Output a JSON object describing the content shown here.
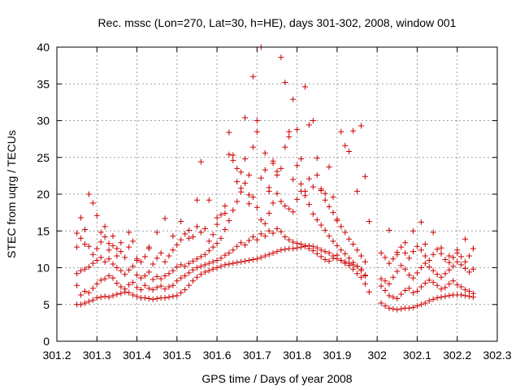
{
  "chart_data": {
    "type": "scatter",
    "title": "Rec. mssc (Lon=270, Lat=30, h=HE), days 301-302, 2008, window 001",
    "xlabel": "GPS time / Days of year 2008",
    "ylabel": "STEC from uqrg / TECUs",
    "xlim": [
      301.2,
      302.3
    ],
    "ylim": [
      0,
      40
    ],
    "xticks": [
      301.2,
      301.3,
      301.4,
      301.5,
      301.6,
      301.7,
      301.8,
      301.9,
      302,
      302.1,
      302.2,
      302.3
    ],
    "xtick_labels": [
      "301.2",
      "301.3",
      "301.4",
      "301.5",
      "301.6",
      "301.7",
      "301.8",
      "301.9",
      "302",
      "302.1",
      "302.2",
      "302.3"
    ],
    "yticks": [
      0,
      5,
      10,
      15,
      20,
      25,
      30,
      35,
      40
    ],
    "ytick_labels": [
      "0",
      "5",
      "10",
      "15",
      "20",
      "25",
      "30",
      "35",
      "40"
    ],
    "grid": true,
    "legend": "none",
    "marker": "plus",
    "color": "#cc0000",
    "series": [
      {
        "x": [
          301.25,
          301.26,
          301.27,
          301.28,
          301.29,
          301.3,
          301.31,
          301.32,
          301.33,
          301.34,
          301.35,
          301.36,
          301.37,
          301.38,
          301.39,
          301.4,
          301.41,
          301.42,
          301.43,
          301.44,
          301.45,
          301.46,
          301.47,
          301.48,
          301.49,
          301.5,
          301.51,
          301.52,
          301.53,
          301.54,
          301.55,
          301.56,
          301.57,
          301.58,
          301.59,
          301.6,
          301.61,
          301.62,
          301.63,
          301.64,
          301.65,
          301.66,
          301.67,
          301.68,
          301.69,
          301.7,
          301.71,
          301.72,
          301.73,
          301.74,
          301.75,
          301.76,
          301.77,
          301.78,
          301.79,
          301.8,
          301.81,
          301.82,
          301.83,
          301.84,
          301.85,
          301.86,
          301.87,
          301.88,
          301.89,
          301.9,
          301.91,
          301.92,
          301.93,
          301.94,
          301.95,
          301.96,
          301.97,
          301.98,
          302.01,
          302.02,
          302.03,
          302.04,
          302.05,
          302.06,
          302.07,
          302.08,
          302.09,
          302.1,
          302.11,
          302.12,
          302.13,
          302.14,
          302.15,
          302.16,
          302.17,
          302.18,
          302.19,
          302.2,
          302.21,
          302.22,
          302.23,
          302.24
        ],
        "y": [
          5.0,
          5.0,
          5.2,
          5.4,
          5.6,
          5.9,
          6.0,
          6.1,
          6.0,
          6.2,
          6.4,
          6.5,
          6.7,
          6.6,
          6.3,
          6.1,
          5.9,
          5.9,
          5.8,
          5.7,
          5.8,
          5.9,
          5.9,
          6.0,
          6.1,
          6.2,
          6.6,
          7.0,
          7.6,
          8.2,
          8.7,
          9.1,
          9.4,
          9.6,
          9.8,
          10.0,
          10.2,
          10.4,
          10.5,
          10.6,
          10.7,
          10.8,
          10.9,
          11.0,
          11.1,
          11.2,
          11.4,
          11.6,
          11.8,
          12.0,
          12.2,
          12.4,
          12.5,
          12.6,
          12.6,
          12.7,
          12.8,
          12.9,
          13.0,
          12.9,
          12.7,
          12.4,
          12.2,
          12.0,
          11.6,
          11.2,
          11.0,
          10.8,
          10.6,
          10.4,
          10.2,
          9.8,
          9.0,
          6.7,
          5.2,
          4.8,
          4.5,
          4.4,
          4.3,
          4.4,
          4.5,
          4.5,
          4.6,
          4.8,
          5.0,
          5.2,
          5.5,
          5.7,
          5.9,
          6.0,
          6.1,
          6.2,
          6.3,
          6.3,
          6.3,
          6.2,
          6.1,
          6.0
        ]
      },
      {
        "x": [
          301.25,
          301.26,
          301.27,
          301.28,
          301.29,
          301.3,
          301.31,
          301.32,
          301.33,
          301.34,
          301.35,
          301.36,
          301.37,
          301.38,
          301.39,
          301.4,
          301.41,
          301.42,
          301.43,
          301.44,
          301.45,
          301.46,
          301.47,
          301.48,
          301.49,
          301.5,
          301.51,
          301.52,
          301.53,
          301.54,
          301.55,
          301.56,
          301.57,
          301.58,
          301.59,
          301.6,
          301.61,
          301.62,
          301.63,
          301.64,
          301.65,
          301.66,
          301.67,
          301.68,
          301.69,
          301.7,
          301.71,
          301.72,
          301.73,
          301.74,
          301.75,
          301.76,
          301.77,
          301.78,
          301.79,
          301.8,
          301.81,
          301.82,
          301.83,
          301.84,
          301.85,
          301.86,
          301.87,
          301.88,
          301.89,
          301.9,
          301.91,
          301.92,
          301.93,
          301.94,
          301.95,
          301.96,
          301.97,
          302.01,
          302.02,
          302.03,
          302.04,
          302.05,
          302.06,
          302.07,
          302.08,
          302.09,
          302.1,
          302.11,
          302.12,
          302.13,
          302.14,
          302.15,
          302.16,
          302.17,
          302.18,
          302.19,
          302.2,
          302.21,
          302.22,
          302.23,
          302.24
        ],
        "y": [
          7.6,
          6.3,
          6.8,
          6.6,
          7.2,
          7.8,
          8.3,
          8.5,
          8.9,
          8.6,
          7.9,
          7.4,
          7.1,
          7.7,
          8.0,
          7.3,
          7.0,
          7.6,
          7.2,
          7.0,
          7.3,
          7.5,
          7.1,
          7.4,
          7.6,
          8.2,
          8.6,
          8.9,
          9.3,
          9.7,
          10.0,
          10.2,
          10.4,
          10.6,
          10.8,
          11.0,
          11.3,
          11.7,
          12.0,
          12.4,
          12.9,
          13.4,
          13.1,
          13.7,
          14.2,
          13.8,
          14.6,
          14.3,
          15.0,
          14.7,
          15.3,
          14.9,
          14.2,
          13.8,
          13.5,
          13.3,
          13.2,
          13.0,
          12.6,
          12.3,
          11.9,
          11.5,
          11.1,
          10.9,
          11.3,
          11.7,
          11.0,
          10.6,
          10.3,
          9.8,
          9.2,
          8.7,
          7.8,
          7.5,
          6.9,
          6.2,
          6.0,
          5.8,
          6.4,
          6.9,
          7.2,
          6.6,
          6.8,
          7.4,
          7.9,
          8.3,
          8.0,
          7.6,
          7.1,
          7.3,
          7.8,
          8.2,
          7.7,
          7.4,
          7.0,
          6.8,
          6.5
        ]
      },
      {
        "x": [
          301.25,
          301.26,
          301.27,
          301.28,
          301.29,
          301.3,
          301.31,
          301.32,
          301.33,
          301.34,
          301.35,
          301.36,
          301.37,
          301.38,
          301.39,
          301.4,
          301.41,
          301.42,
          301.43,
          301.44,
          301.45,
          301.46,
          301.47,
          301.48,
          301.49,
          301.5,
          301.51,
          301.52,
          301.53,
          301.54,
          301.55,
          301.56,
          301.57,
          301.58,
          301.59,
          301.6,
          301.61,
          301.62,
          301.63,
          301.64,
          301.65,
          301.66,
          301.67,
          301.68,
          301.69,
          301.7,
          301.71,
          301.72,
          301.73,
          301.74,
          301.75,
          301.76,
          301.77,
          301.78,
          301.79,
          301.8,
          301.81,
          301.82,
          301.83,
          301.84,
          301.85,
          301.86,
          301.87,
          301.88,
          301.89,
          301.9,
          301.91,
          301.92,
          301.93,
          301.94,
          301.95,
          301.96,
          301.97,
          302.01,
          302.02,
          302.03,
          302.04,
          302.05,
          302.06,
          302.07,
          302.08,
          302.09,
          302.1,
          302.11,
          302.12,
          302.13,
          302.14,
          302.15,
          302.16,
          302.17,
          302.18,
          302.19,
          302.2,
          302.21,
          302.22,
          302.23,
          302.24
        ],
        "y": [
          9.2,
          9.6,
          9.8,
          10.1,
          10.6,
          11.0,
          11.4,
          10.8,
          11.2,
          10.5,
          10.0,
          9.6,
          9.1,
          9.7,
          10.2,
          9.0,
          8.6,
          8.9,
          9.4,
          8.4,
          8.8,
          8.5,
          8.9,
          9.2,
          9.6,
          10.1,
          10.4,
          10.2,
          10.6,
          10.9,
          11.2,
          11.5,
          11.8,
          12.3,
          12.8,
          13.3,
          14.0,
          15.2,
          16.4,
          17.8,
          19.0,
          20.3,
          21.5,
          22.6,
          19.6,
          18.2,
          16.5,
          16.0,
          17.4,
          18.8,
          20.1,
          19.0,
          18.4,
          18.0,
          17.6,
          19.3,
          20.4,
          19.8,
          18.6,
          17.3,
          16.5,
          15.8,
          15.1,
          14.3,
          13.6,
          13.0,
          12.4,
          11.9,
          11.3,
          10.7,
          10.2,
          9.6,
          8.9,
          8.5,
          8.2,
          7.8,
          8.7,
          9.5,
          10.3,
          9.8,
          9.0,
          8.6,
          9.3,
          10.0,
          10.6,
          10.1,
          9.6,
          9.1,
          8.7,
          9.2,
          9.7,
          10.2,
          10.8,
          10.4,
          9.9,
          9.4,
          9.8
        ]
      },
      {
        "x": [
          301.25,
          301.26,
          301.27,
          301.28,
          301.29,
          301.3,
          301.31,
          301.32,
          301.33,
          301.34,
          301.35,
          301.36,
          301.37,
          301.38,
          301.39,
          301.4,
          301.41,
          301.42,
          301.43,
          301.44,
          301.45,
          301.46,
          301.47,
          301.48,
          301.49,
          301.5,
          301.51,
          301.52,
          301.53,
          301.54,
          301.55,
          301.56,
          301.57,
          301.58,
          301.59,
          301.6,
          301.61,
          301.62,
          301.63,
          301.64,
          301.65,
          301.66,
          301.67,
          301.68,
          301.69,
          301.7,
          301.71,
          301.72,
          301.73,
          301.74,
          301.75,
          301.76,
          301.77,
          301.78,
          301.79,
          301.8,
          301.81,
          301.82,
          301.83,
          301.84,
          301.85,
          301.86,
          301.87,
          301.88,
          301.89,
          301.9,
          301.91,
          301.92,
          301.93,
          301.94,
          301.95,
          301.96,
          301.97,
          302.01,
          302.02,
          302.03,
          302.04,
          302.05,
          302.06,
          302.07,
          302.08,
          302.09,
          302.1,
          302.11,
          302.12,
          302.13,
          302.14,
          302.15,
          302.16,
          302.17,
          302.18,
          302.19,
          302.2,
          302.21,
          302.22,
          302.23,
          302.24
        ],
        "y": [
          12.8,
          14.0,
          13.2,
          12.9,
          11.8,
          12.6,
          13.5,
          14.2,
          12.4,
          13.0,
          11.6,
          12.2,
          11.4,
          12.8,
          13.6,
          11.2,
          10.8,
          11.5,
          12.6,
          10.5,
          11.3,
          12.0,
          10.8,
          11.6,
          12.4,
          13.1,
          13.8,
          14.6,
          15.1,
          14.2,
          15.6,
          14.8,
          15.3,
          13.6,
          14.5,
          15.9,
          17.2,
          18.4,
          25.4,
          24.6,
          21.7,
          23.0,
          24.8,
          19.9,
          26.4,
          28.5,
          22.2,
          23.3,
          20.9,
          24.2,
          22.6,
          23.5,
          26.4,
          27.8,
          22.0,
          23.9,
          21.4,
          20.4,
          22.1,
          21.0,
          22.6,
          20.7,
          19.2,
          18.3,
          17.5,
          16.4,
          15.6,
          14.8,
          13.9,
          13.2,
          12.4,
          11.6,
          10.8,
          12.0,
          11.4,
          10.6,
          11.2,
          12.1,
          12.8,
          12.0,
          11.3,
          12.2,
          12.9,
          12.4,
          11.6,
          11.0,
          11.8,
          12.5,
          11.9,
          11.1,
          10.7,
          11.4,
          12.0,
          11.5,
          10.8,
          11.6,
          12.6
        ]
      },
      {
        "x": [
          301.25,
          301.26,
          301.27,
          301.28,
          301.29,
          301.3,
          301.31,
          301.32,
          301.33,
          301.34,
          301.35,
          301.36,
          301.38,
          301.4,
          301.43,
          301.45,
          301.47,
          301.49,
          301.51,
          301.53,
          301.55,
          301.56,
          301.58,
          301.6,
          301.62,
          301.63,
          301.64,
          301.65,
          301.66,
          301.67,
          301.68,
          301.69,
          301.7,
          301.71,
          301.72,
          301.73,
          301.74,
          301.75,
          301.76,
          301.77,
          301.78,
          301.79,
          301.8,
          301.81,
          301.82,
          301.83,
          301.84,
          301.85,
          301.86,
          301.87,
          301.88,
          301.89,
          301.9,
          301.91,
          301.92,
          301.93,
          301.94,
          301.95,
          301.96,
          301.97,
          301.98,
          302.03,
          302.05,
          302.07,
          302.09,
          302.11,
          302.12,
          302.14,
          302.16,
          302.18,
          302.2,
          302.22,
          302.24
        ],
        "y": [
          14.7,
          16.8,
          15.2,
          20.0,
          18.8,
          17.1,
          14.8,
          15.6,
          13.3,
          14.3,
          12.6,
          13.4,
          14.8,
          11.0,
          12.8,
          14.8,
          16.7,
          14.3,
          16.3,
          14.0,
          19.2,
          24.4,
          19.2,
          16.8,
          17.4,
          28.4,
          25.3,
          23.5,
          20.8,
          30.4,
          18.7,
          36.0,
          30.0,
          40.0,
          25.6,
          20.4,
          24.5,
          23.1,
          38.6,
          35.2,
          28.5,
          32.9,
          28.8,
          24.8,
          34.6,
          29.4,
          30.0,
          24.9,
          20.5,
          20.1,
          23.7,
          19.6,
          16.6,
          28.5,
          26.6,
          25.8,
          28.6,
          20.4,
          29.3,
          22.4,
          16.3,
          15.1,
          11.8,
          13.4,
          15.0,
          16.2,
          13.2,
          14.8,
          12.7,
          11.6,
          12.4,
          13.9,
          12.6
        ]
      }
    ]
  }
}
